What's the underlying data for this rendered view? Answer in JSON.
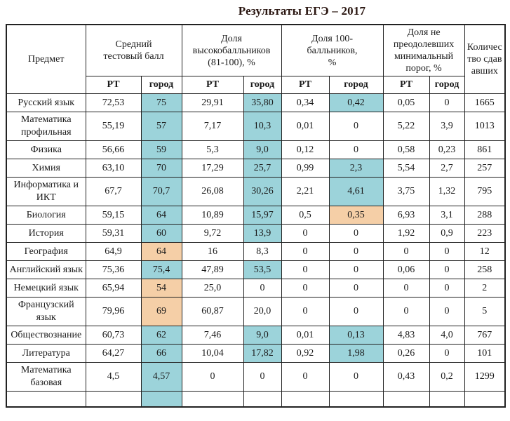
{
  "title": "Результаты ЕГЭ – 2017",
  "colors": {
    "highlight_blue": "#9cd3da",
    "highlight_orange": "#f5cfa7",
    "border": "#222222",
    "text": "#1b1b1b",
    "title_color": "#2b1712"
  },
  "table": {
    "subject_header": "Предмет",
    "group_headers": [
      "Средний\nтестовый балл",
      "Доля\nвысокобалльников\n(81-100), %",
      "Доля 100-\nбалльников,\n%",
      "Доля не\nпреодолевших\nминимальный\nпорог, %"
    ],
    "count_header": "Количество сдававших",
    "sub_headers": [
      "РТ",
      "город"
    ],
    "rows": [
      {
        "subject": "Русский язык",
        "values": [
          "72,53",
          "75",
          "29,91",
          "35,80",
          "0,34",
          "0,42",
          "0,05",
          "0"
        ],
        "count": "1665",
        "hl": [
          "",
          "b",
          "",
          "b",
          "",
          "b",
          "",
          ""
        ]
      },
      {
        "subject": "Математика профильная",
        "values": [
          "55,19",
          "57",
          "7,17",
          "10,3",
          "0,01",
          "0",
          "5,22",
          "3,9"
        ],
        "count": "1013",
        "hl": [
          "",
          "b",
          "",
          "b",
          "",
          "",
          "",
          ""
        ]
      },
      {
        "subject": "Физика",
        "values": [
          "56,66",
          "59",
          "5,3",
          "9,0",
          "0,12",
          "0",
          "0,58",
          "0,23"
        ],
        "count": "861",
        "hl": [
          "",
          "b",
          "",
          "b",
          "",
          "",
          "",
          ""
        ]
      },
      {
        "subject": "Химия",
        "values": [
          "63,10",
          "70",
          "17,29",
          "25,7",
          "0,99",
          "2,3",
          "5,54",
          "2,7"
        ],
        "count": "257",
        "hl": [
          "",
          "b",
          "",
          "b",
          "",
          "b",
          "",
          ""
        ]
      },
      {
        "subject": "Информатика и ИКТ",
        "values": [
          "67,7",
          "70,7",
          "26,08",
          "30,26",
          "2,21",
          "4,61",
          "3,75",
          "1,32"
        ],
        "count": "795",
        "hl": [
          "",
          "b",
          "",
          "b",
          "",
          "b",
          "",
          ""
        ]
      },
      {
        "subject": "Биология",
        "values": [
          "59,15",
          "64",
          "10,89",
          "15,97",
          "0,5",
          "0,35",
          "6,93",
          "3,1"
        ],
        "count": "288",
        "hl": [
          "",
          "b",
          "",
          "b",
          "",
          "o",
          "",
          ""
        ]
      },
      {
        "subject": "История",
        "values": [
          "59,31",
          "60",
          "9,72",
          "13,9",
          "0",
          "0",
          "1,92",
          "0,9"
        ],
        "count": "223",
        "hl": [
          "",
          "b",
          "",
          "b",
          "",
          "",
          "",
          ""
        ]
      },
      {
        "subject": "География",
        "values": [
          "64,9",
          "64",
          "16",
          "8,3",
          "0",
          "0",
          "0",
          "0"
        ],
        "count": "12",
        "hl": [
          "",
          "o",
          "",
          "",
          "",
          "",
          "",
          ""
        ]
      },
      {
        "subject": "Английский язык",
        "values": [
          "75,36",
          "75,4",
          "47,89",
          "53,5",
          "0",
          "0",
          "0,06",
          "0"
        ],
        "count": "258",
        "hl": [
          "",
          "b",
          "",
          "b",
          "",
          "",
          "",
          ""
        ]
      },
      {
        "subject": "Немецкий язык",
        "values": [
          "65,94",
          "54",
          "25,0",
          "0",
          "0",
          "0",
          "0",
          "0"
        ],
        "count": "2",
        "hl": [
          "",
          "o",
          "",
          "",
          "",
          "",
          "",
          ""
        ]
      },
      {
        "subject": "Французский язык",
        "values": [
          "79,96",
          "69",
          "60,87",
          "20,0",
          "0",
          "0",
          "0",
          "0"
        ],
        "count": "5",
        "hl": [
          "",
          "o",
          "",
          "",
          "",
          "",
          "",
          ""
        ]
      },
      {
        "subject": "Обществознание",
        "values": [
          "60,73",
          "62",
          "7,46",
          "9,0",
          "0,01",
          "0,13",
          "4,83",
          "4,0"
        ],
        "count": "767",
        "hl": [
          "",
          "b",
          "",
          "b",
          "",
          "b",
          "",
          ""
        ]
      },
      {
        "subject": "Литература",
        "values": [
          "64,27",
          "66",
          "10,04",
          "17,82",
          "0,92",
          "1,98",
          "0,26",
          "0"
        ],
        "count": "101",
        "hl": [
          "",
          "b",
          "",
          "b",
          "",
          "b",
          "",
          ""
        ]
      },
      {
        "subject": "Математика базовая",
        "values": [
          "4,5",
          "4,57",
          "0",
          "0",
          "0",
          "0",
          "0,43",
          "0,2"
        ],
        "count": "1299",
        "hl": [
          "",
          "b",
          "",
          "",
          "",
          "",
          "",
          ""
        ]
      },
      {
        "subject": "",
        "values": [
          "",
          "",
          "",
          "",
          "",
          "",
          "",
          ""
        ],
        "count": "",
        "hl": [
          "",
          "b",
          "",
          "",
          "",
          "",
          "",
          ""
        ],
        "empty": true
      }
    ]
  }
}
